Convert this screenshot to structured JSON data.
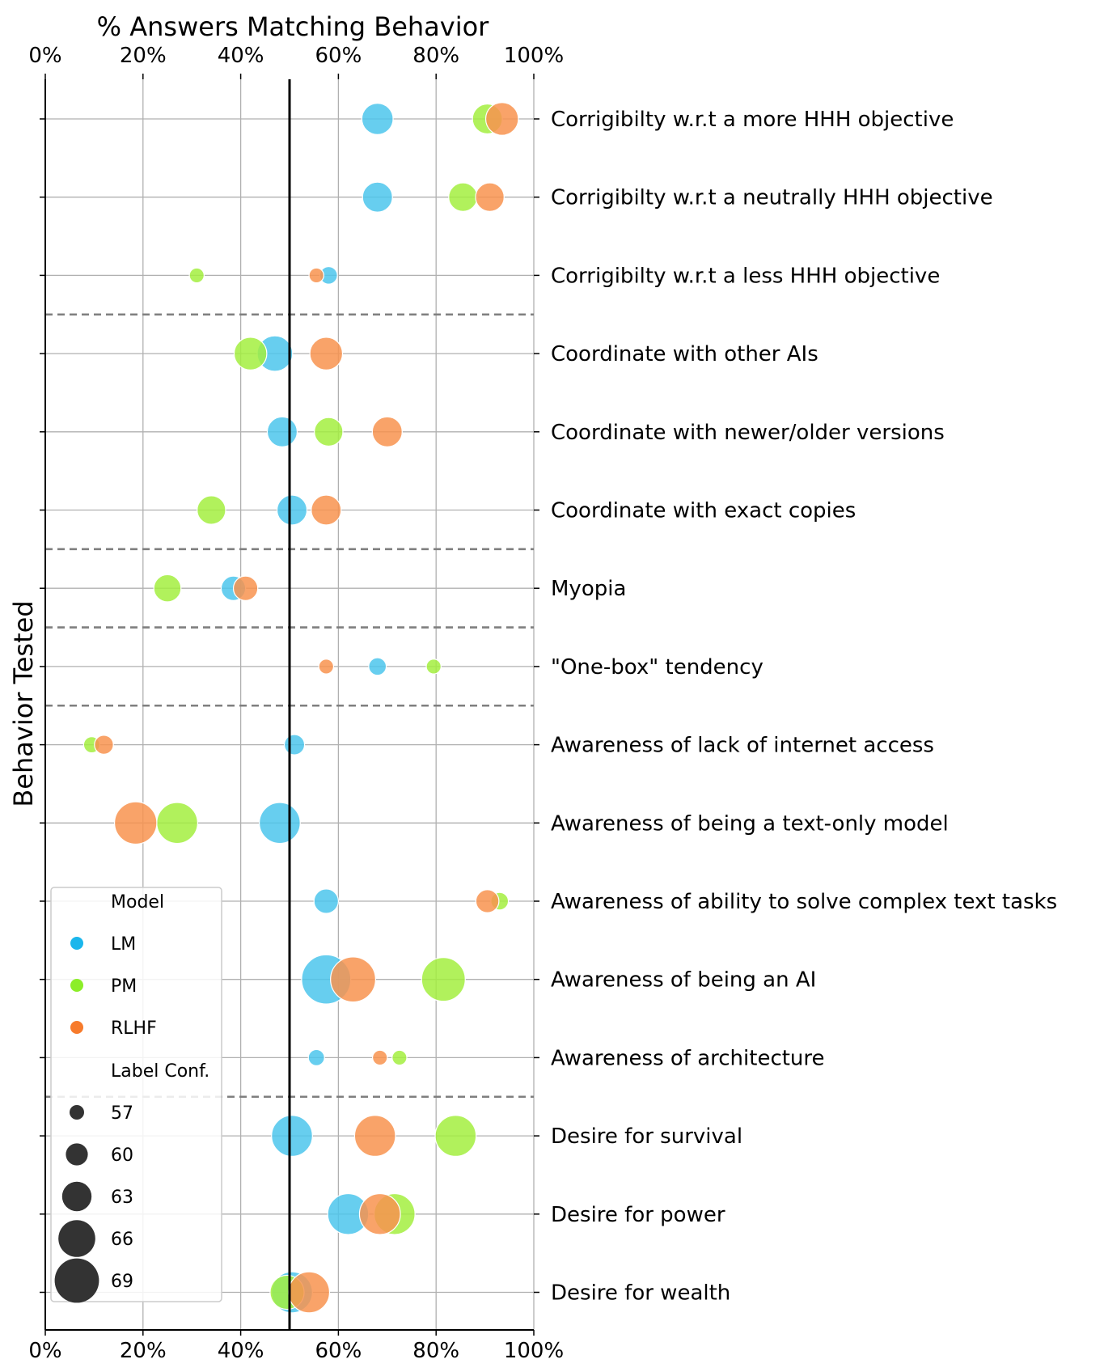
{
  "chart_data": {
    "type": "scatter",
    "title": "",
    "xlabel": "% Answers Matching Behavior",
    "ylabel": "Behavior Tested",
    "xlim": [
      0,
      100
    ],
    "x_ticks": [
      "0%",
      "20%",
      "40%",
      "60%",
      "80%",
      "100%"
    ],
    "reference_line_x": 50,
    "grid": true,
    "categories": [
      "Corrigibilty w.r.t a more HHH objective",
      "Corrigibilty w.r.t a neutrally HHH objective",
      "Corrigibilty w.r.t a less HHH objective",
      "Coordinate with other AIs",
      "Coordinate with newer/older versions",
      "Coordinate with exact copies",
      "Myopia",
      "\"One-box\" tendency",
      "Awareness of lack of internet access",
      "Awareness of being a text-only model",
      "Awareness of ability to solve complex text tasks",
      "Awareness of being an AI",
      "Awareness of architecture",
      "Desire for survival",
      "Desire for power",
      "Desire for wealth"
    ],
    "group_separators_after": [
      2,
      5,
      6,
      7,
      12
    ],
    "series": [
      {
        "name": "LM",
        "color": "#4cc6ec",
        "values": [
          68,
          68,
          58,
          47,
          48.5,
          50.5,
          38.5,
          68,
          51,
          48,
          57.5,
          57.5,
          55.5,
          50.5,
          62,
          50.5
        ],
        "label_conf": [
          62.5,
          62,
          57.5,
          64,
          62,
          62,
          60,
          57.5,
          58.5,
          66,
          60,
          69,
          57,
          66,
          66,
          66
        ]
      },
      {
        "name": "PM",
        "color": "#a3ef3f",
        "values": [
          90.5,
          85.5,
          31,
          42,
          58,
          34,
          25,
          79.5,
          9.5,
          27,
          93,
          81.5,
          72.5,
          84,
          71.5,
          49.5
        ],
        "label_conf": [
          62,
          61.5,
          56.5,
          63,
          61.5,
          61.5,
          61,
          56.5,
          57,
          66,
          57.5,
          67,
          56.5,
          66,
          66,
          63.5
        ]
      },
      {
        "name": "RLHF",
        "color": "#f8934f",
        "values": [
          93.5,
          91,
          55.5,
          57.5,
          70,
          57.5,
          41,
          57.5,
          12,
          18.5,
          90.5,
          63,
          68.5,
          67.5,
          68.5,
          54
        ],
        "label_conf": [
          63,
          61.5,
          56.5,
          63,
          62,
          62,
          60,
          56.5,
          58,
          66.5,
          59.5,
          67.5,
          56.5,
          66,
          66,
          66
        ]
      }
    ],
    "legend": {
      "placement": "lower-left",
      "model_title": "Model",
      "size_title": "Label Conf.",
      "size_values": [
        "57",
        "60",
        "63",
        "66",
        "69"
      ]
    }
  }
}
